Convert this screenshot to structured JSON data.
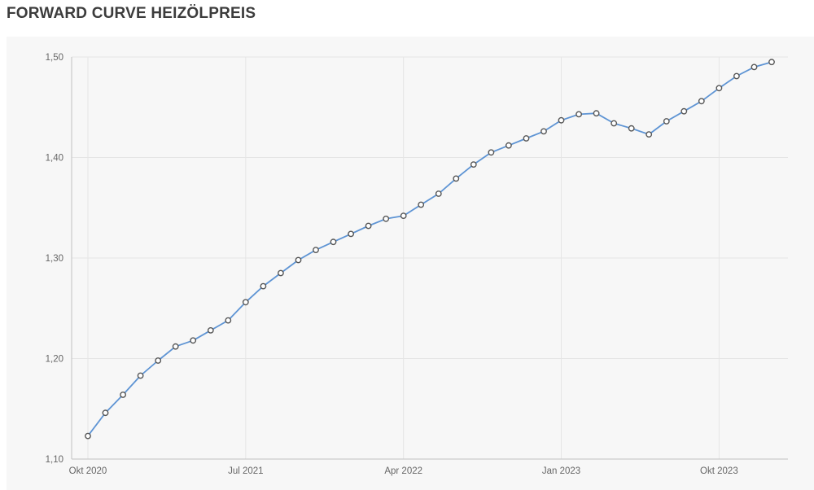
{
  "page": {
    "title": "FORWARD CURVE HEIZÖLPREIS"
  },
  "colors": {
    "page_bg": "#ffffff",
    "panel_bg": "#f7f7f7",
    "title_text": "#3c3c3c",
    "grid_line": "#e5e5e5",
    "axis_line": "#c2c2c2",
    "tick_label": "#666666",
    "series_line": "#5e94d4",
    "marker_fill": "#ffffff",
    "marker_stroke": "#555555"
  },
  "chart_data": {
    "type": "line",
    "title": "FORWARD CURVE HEIZÖLPREIS",
    "x": [
      "Okt 2020",
      "Nov 2020",
      "Dez 2020",
      "Jan 2021",
      "Feb 2021",
      "Mär 2021",
      "Apr 2021",
      "Mai 2021",
      "Jun 2021",
      "Jul 2021",
      "Aug 2021",
      "Sep 2021",
      "Okt 2021",
      "Nov 2021",
      "Dez 2021",
      "Jan 2022",
      "Feb 2022",
      "Mär 2022",
      "Apr 2022",
      "Mai 2022",
      "Jun 2022",
      "Jul 2022",
      "Aug 2022",
      "Sep 2022",
      "Okt 2022",
      "Nov 2022",
      "Dez 2022",
      "Jan 2023",
      "Feb 2023",
      "Mär 2023",
      "Apr 2023",
      "Mai 2023",
      "Jun 2023",
      "Jul 2023",
      "Aug 2023",
      "Sep 2023",
      "Okt 2023",
      "Nov 2023",
      "Dez 2023",
      "Jan 2024"
    ],
    "values": [
      1.123,
      1.146,
      1.164,
      1.183,
      1.198,
      1.212,
      1.218,
      1.228,
      1.238,
      1.256,
      1.272,
      1.285,
      1.298,
      1.308,
      1.316,
      1.324,
      1.332,
      1.339,
      1.342,
      1.353,
      1.364,
      1.379,
      1.393,
      1.405,
      1.412,
      1.419,
      1.426,
      1.437,
      1.443,
      1.444,
      1.434,
      1.429,
      1.423,
      1.436,
      1.446,
      1.456,
      1.469,
      1.481,
      1.49,
      1.495
    ],
    "ylim": [
      1.1,
      1.5
    ],
    "ytick_labels": [
      "1,10",
      "1,20",
      "1,30",
      "1,40",
      "1,50"
    ],
    "xtick_indices": [
      0,
      9,
      18,
      27,
      36
    ],
    "xtick_labels": [
      "Okt 2020",
      "Jul 2021",
      "Apr 2022",
      "Jan 2023",
      "Okt 2023"
    ],
    "grid": true,
    "legend": "none",
    "marker": "circle-open"
  }
}
